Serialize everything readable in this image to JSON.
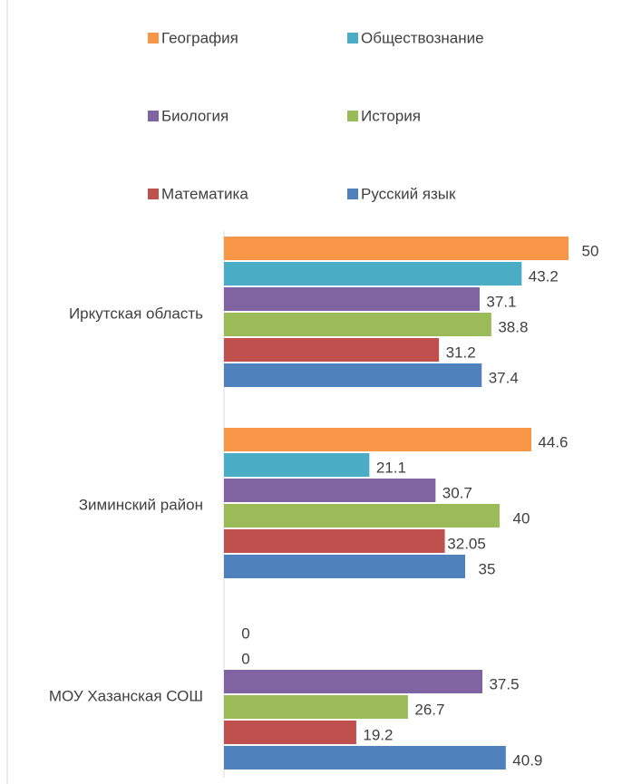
{
  "chart_data": {
    "type": "bar",
    "orientation": "horizontal",
    "categories": [
      "Иркутская область",
      "Зиминский район",
      "МОУ Хазанская СОШ"
    ],
    "xlim": [
      0,
      50
    ],
    "series": [
      {
        "name": "География",
        "color": "#f79646",
        "values": [
          50,
          44.6,
          0
        ]
      },
      {
        "name": "Обществознание",
        "color": "#4bacc6",
        "values": [
          43.2,
          21.1,
          0
        ]
      },
      {
        "name": "Биология",
        "color": "#8064a2",
        "values": [
          37.1,
          30.7,
          37.5
        ]
      },
      {
        "name": "История",
        "color": "#9bbb59",
        "values": [
          38.8,
          40,
          26.7
        ]
      },
      {
        "name": "Математика",
        "color": "#c0504d",
        "values": [
          31.2,
          32.05,
          19.2
        ]
      },
      {
        "name": "Русский язык",
        "color": "#4f81bd",
        "values": [
          37.4,
          35,
          40.9
        ]
      }
    ]
  }
}
